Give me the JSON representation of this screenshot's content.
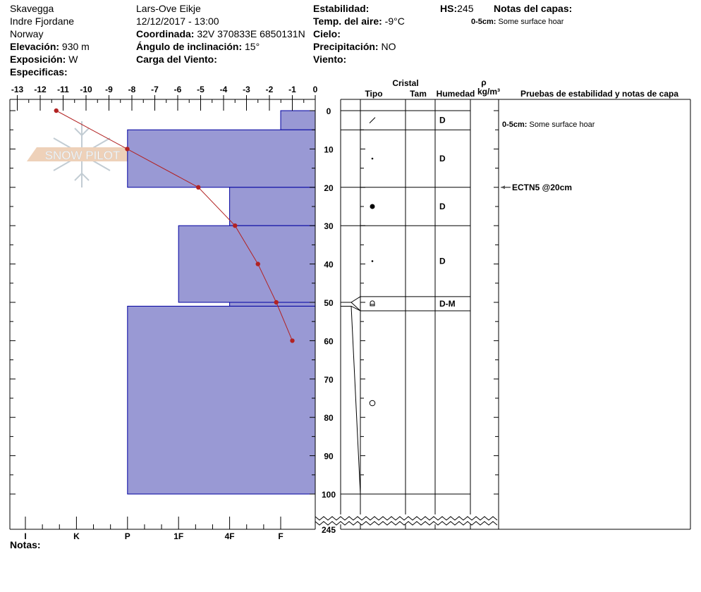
{
  "header": {
    "location": "Skavegga",
    "region": "Indre Fjordane",
    "country": "Norway",
    "elevation_label": "Elevación:",
    "elevation": "930 m",
    "aspect_label": "Exposición:",
    "aspect": "W",
    "specifics_label": "Especificas:",
    "observer": "Lars-Ove Eikje",
    "datetime": "12/12/2017 - 13:00",
    "coord_label": "Coordinada:",
    "coord": "32V 370833E 6850131N",
    "slope_label": "Ángulo de inclinación:",
    "slope": "15°",
    "wind_load_label": "Carga del Viento:",
    "stability_label": "Estabilidad:",
    "air_temp_label": "Temp. del aire:",
    "air_temp": "-9°C",
    "sky_label": "Cielo:",
    "precip_label": "Precipitación:",
    "precip": "NO",
    "wind_label": "Viento:",
    "hs_label": "HS:",
    "hs": "245",
    "layer_notes_label": "Notas del capas:",
    "layer_notes": [
      {
        "range": "0-5cm:",
        "text": "Some surface hoar"
      }
    ]
  },
  "columns": {
    "crystal": "Cristal",
    "type": "Tipo",
    "size": "Tam",
    "moisture": "Humedad",
    "rho": "ρ",
    "rho_unit": "kg/m³",
    "tests": "Pruebas de estabilidad y notas de capa"
  },
  "notes_label": "Notas:",
  "logo_text": "SNOW PILOT",
  "colors": {
    "hardness_fill": "#9999d4",
    "hardness_stroke": "#0000a0",
    "temperature": "#b22222"
  },
  "chart_data": {
    "type": "snow-profile",
    "temperature_axis": {
      "ticks": [
        -13,
        -12,
        -11,
        -10,
        -9,
        -8,
        -7,
        -6,
        -5,
        -4,
        -3,
        -2,
        -1,
        0
      ],
      "xlim": [
        -13,
        0
      ]
    },
    "depth_axis": {
      "ticks": [
        0,
        10,
        20,
        30,
        40,
        50,
        60,
        70,
        80,
        90,
        100
      ],
      "break_label": "245",
      "ylim": [
        0,
        100
      ]
    },
    "hardness_axis": {
      "ticks": [
        "I",
        "K",
        "P",
        "1F",
        "4F",
        "F"
      ]
    },
    "temperature_profile": [
      {
        "depth": 0,
        "temp": -11.3
      },
      {
        "depth": 10,
        "temp": -8.2
      },
      {
        "depth": 20,
        "temp": -5.1
      },
      {
        "depth": 30,
        "temp": -3.5
      },
      {
        "depth": 40,
        "temp": -2.5
      },
      {
        "depth": 50,
        "temp": -1.7
      },
      {
        "depth": 60,
        "temp": -1.0
      }
    ],
    "hardness_profile": [
      {
        "top": 0,
        "bottom": 5,
        "hardness": "F"
      },
      {
        "top": 5,
        "bottom": 20,
        "hardness": "P"
      },
      {
        "top": 20,
        "bottom": 30,
        "hardness": "4F"
      },
      {
        "top": 30,
        "bottom": 50,
        "hardness": "1F"
      },
      {
        "top": 50,
        "bottom": 51,
        "hardness": "4F"
      },
      {
        "top": 51,
        "bottom": 100,
        "hardness": "P"
      }
    ],
    "layers": [
      {
        "top": 0,
        "bottom": 5,
        "grain": "slash",
        "moisture": "D"
      },
      {
        "top": 5,
        "bottom": 20,
        "grain": "small-dot",
        "moisture": "D"
      },
      {
        "top": 20,
        "bottom": 30,
        "grain": "large-dot",
        "moisture": "D"
      },
      {
        "top": 30,
        "bottom": 48.5,
        "grain": "small-dot",
        "moisture": "D"
      },
      {
        "top": 48.5,
        "bottom": 52.2,
        "grain": "faceted-rounding",
        "moisture": "D-M"
      },
      {
        "top": 52.2,
        "bottom": 100,
        "grain": "open-circle",
        "moisture": ""
      }
    ],
    "tests": [
      {
        "depth": 20,
        "label": "ECTN5 @20cm"
      }
    ],
    "layer_notes": [
      {
        "range": "0-5cm:",
        "text": "Some surface hoar"
      }
    ]
  }
}
